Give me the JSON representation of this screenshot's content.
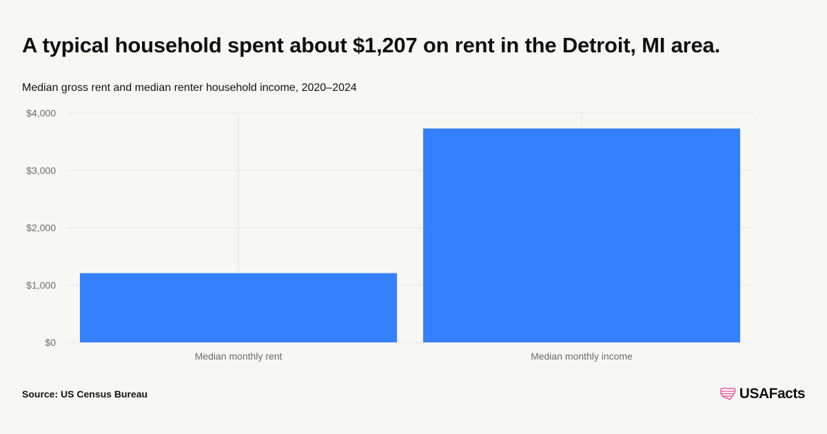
{
  "header": {
    "title": "A typical household spent about $1,207 on rent in the Detroit, MI area.",
    "subtitle": "Median gross rent and median renter household income, 2020–2024"
  },
  "footer": {
    "source": "Source: US Census Bureau",
    "brand": "USAFacts",
    "brand_icon": "us-map-flag-icon"
  },
  "colors": {
    "bar": "#3580ff",
    "grid": "#e6e6e1",
    "axis_text": "#6b6b6b",
    "background": "#f7f7f3",
    "brand_accent": "#e8509a"
  },
  "chart_data": {
    "type": "bar",
    "title": "A typical household spent about $1,207 on rent in the Detroit, MI area.",
    "subtitle": "Median gross rent and median renter household income, 2020–2024",
    "categories": [
      "Median monthly rent",
      "Median monthly income"
    ],
    "values": [
      1207,
      3730
    ],
    "ylim": [
      0,
      4000
    ],
    "y_ticks": [
      0,
      1000,
      2000,
      3000,
      4000
    ],
    "y_tick_labels": [
      "$0",
      "$1,000",
      "$2,000",
      "$3,000",
      "$4,000"
    ],
    "xlabel": "",
    "ylabel": "",
    "grid": true,
    "legend": "none"
  }
}
